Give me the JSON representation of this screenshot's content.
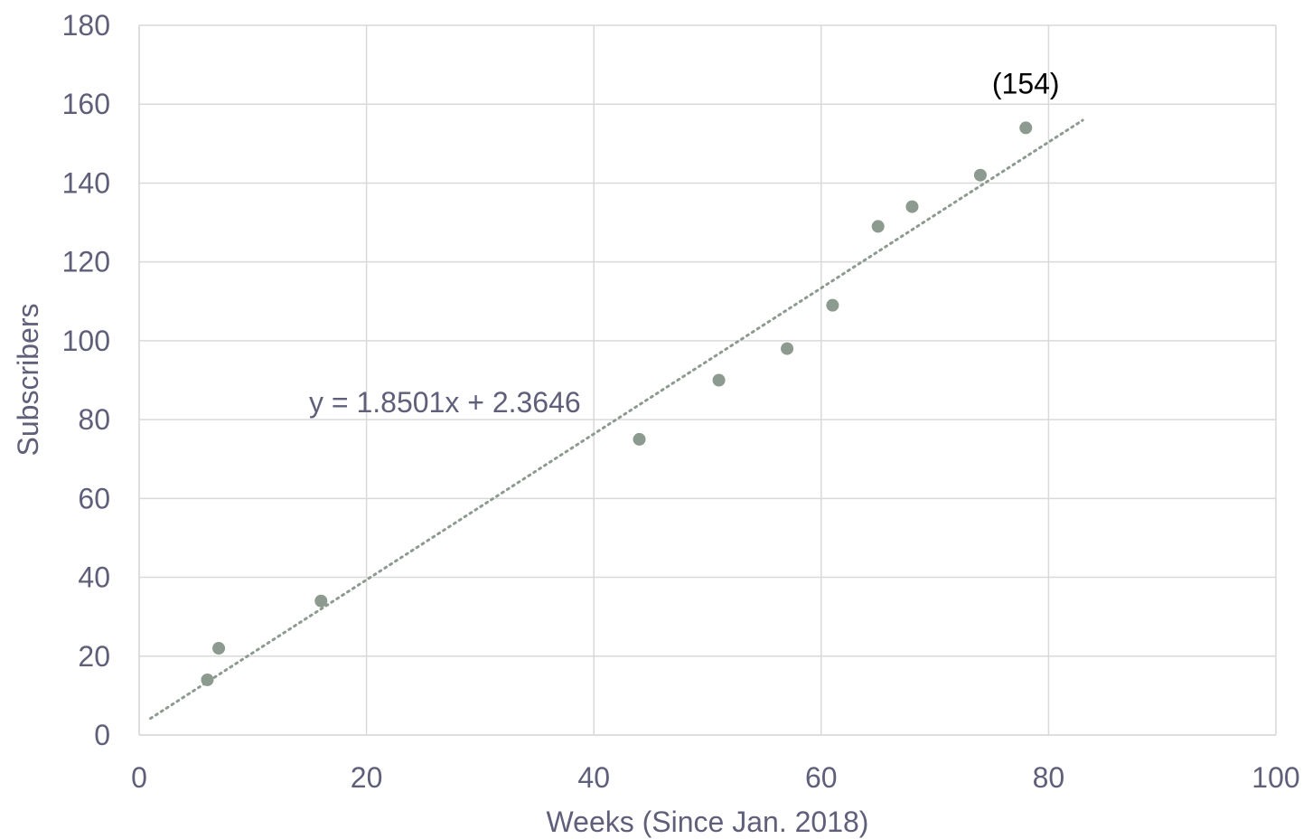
{
  "chart_data": {
    "type": "scatter",
    "title": "",
    "xlabel": "Weeks (Since Jan. 2018)",
    "ylabel": "Subscribers",
    "xlim": [
      0,
      100
    ],
    "ylim": [
      0,
      180
    ],
    "x_ticks": [
      0,
      20,
      40,
      60,
      80,
      100
    ],
    "y_ticks": [
      0,
      20,
      40,
      60,
      80,
      100,
      120,
      140,
      160,
      180
    ],
    "grid": true,
    "marker_color": "#8c9a8f",
    "series": [
      {
        "points": [
          {
            "x": 6,
            "y": 14
          },
          {
            "x": 7,
            "y": 22
          },
          {
            "x": 16,
            "y": 34
          },
          {
            "x": 44,
            "y": 75
          },
          {
            "x": 51,
            "y": 90
          },
          {
            "x": 57,
            "y": 98
          },
          {
            "x": 61,
            "y": 109
          },
          {
            "x": 65,
            "y": 129
          },
          {
            "x": 68,
            "y": 134
          },
          {
            "x": 74,
            "y": 142
          },
          {
            "x": 78,
            "y": 154
          }
        ]
      }
    ],
    "trendline": {
      "type": "linear",
      "slope": 1.8501,
      "intercept": 2.3646,
      "x_range": [
        1,
        83
      ],
      "equation_label": "y = 1.8501x + 2.3646"
    },
    "annotations": [
      {
        "text": "(154)",
        "x": 78,
        "y": 154
      }
    ]
  }
}
